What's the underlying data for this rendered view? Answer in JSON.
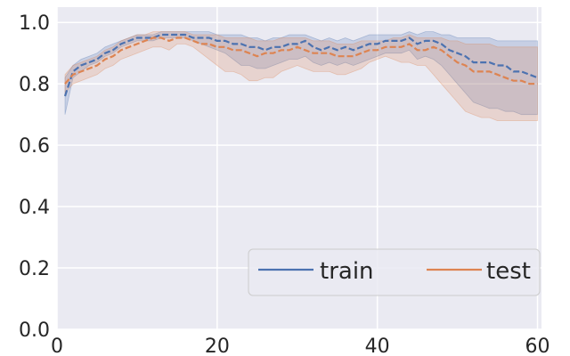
{
  "chart_data": {
    "type": "line",
    "xlim": [
      0,
      60.5
    ],
    "ylim": [
      0,
      1.05
    ],
    "xticks": [
      0,
      20,
      40,
      60
    ],
    "yticks": [
      0.0,
      0.2,
      0.4,
      0.6,
      0.8,
      1.0
    ],
    "xtick_labels": [
      "0",
      "20",
      "40",
      "60"
    ],
    "ytick_labels": [
      "0.0",
      "0.2",
      "0.4",
      "0.6",
      "0.8",
      "1.0"
    ],
    "grid": true,
    "legend": {
      "placement": "lower-right",
      "columns": 2
    },
    "series": [
      {
        "name": "train",
        "color": "#4c72b0",
        "style": "dashed",
        "x": [
          1,
          2,
          3,
          4,
          5,
          6,
          7,
          8,
          9,
          10,
          11,
          12,
          13,
          14,
          15,
          16,
          17,
          18,
          19,
          20,
          21,
          22,
          23,
          24,
          25,
          26,
          27,
          28,
          29,
          30,
          31,
          32,
          33,
          34,
          35,
          36,
          37,
          38,
          39,
          40,
          41,
          42,
          43,
          44,
          45,
          46,
          47,
          48,
          49,
          50,
          51,
          52,
          53,
          54,
          55,
          56,
          57,
          58,
          59,
          60
        ],
        "values": [
          0.76,
          0.84,
          0.86,
          0.87,
          0.88,
          0.9,
          0.91,
          0.93,
          0.94,
          0.95,
          0.95,
          0.95,
          0.96,
          0.96,
          0.96,
          0.96,
          0.95,
          0.95,
          0.95,
          0.94,
          0.94,
          0.93,
          0.93,
          0.92,
          0.92,
          0.91,
          0.92,
          0.92,
          0.93,
          0.93,
          0.94,
          0.92,
          0.91,
          0.92,
          0.91,
          0.92,
          0.91,
          0.92,
          0.93,
          0.93,
          0.94,
          0.94,
          0.94,
          0.95,
          0.93,
          0.94,
          0.94,
          0.93,
          0.91,
          0.9,
          0.89,
          0.87,
          0.87,
          0.87,
          0.86,
          0.86,
          0.84,
          0.84,
          0.83,
          0.82
        ],
        "lower": [
          0.7,
          0.82,
          0.84,
          0.86,
          0.87,
          0.89,
          0.9,
          0.92,
          0.93,
          0.94,
          0.94,
          0.94,
          0.95,
          0.95,
          0.95,
          0.95,
          0.94,
          0.93,
          0.92,
          0.91,
          0.9,
          0.88,
          0.86,
          0.86,
          0.85,
          0.85,
          0.86,
          0.87,
          0.88,
          0.88,
          0.89,
          0.87,
          0.86,
          0.87,
          0.86,
          0.87,
          0.86,
          0.87,
          0.88,
          0.89,
          0.9,
          0.9,
          0.9,
          0.91,
          0.88,
          0.89,
          0.88,
          0.86,
          0.83,
          0.8,
          0.77,
          0.74,
          0.73,
          0.72,
          0.72,
          0.71,
          0.71,
          0.7,
          0.7,
          0.7
        ],
        "upper": [
          0.82,
          0.86,
          0.88,
          0.89,
          0.9,
          0.92,
          0.93,
          0.94,
          0.95,
          0.96,
          0.96,
          0.96,
          0.97,
          0.97,
          0.97,
          0.97,
          0.97,
          0.97,
          0.97,
          0.96,
          0.96,
          0.96,
          0.96,
          0.95,
          0.95,
          0.94,
          0.95,
          0.95,
          0.96,
          0.96,
          0.96,
          0.95,
          0.94,
          0.95,
          0.94,
          0.95,
          0.94,
          0.95,
          0.96,
          0.96,
          0.96,
          0.96,
          0.96,
          0.97,
          0.96,
          0.97,
          0.97,
          0.96,
          0.96,
          0.95,
          0.95,
          0.95,
          0.95,
          0.95,
          0.94,
          0.94,
          0.94,
          0.94,
          0.94,
          0.94
        ]
      },
      {
        "name": "test",
        "color": "#dd8452",
        "style": "dashed",
        "x": [
          1,
          2,
          3,
          4,
          5,
          6,
          7,
          8,
          9,
          10,
          11,
          12,
          13,
          14,
          15,
          16,
          17,
          18,
          19,
          20,
          21,
          22,
          23,
          24,
          25,
          26,
          27,
          28,
          29,
          30,
          31,
          32,
          33,
          34,
          35,
          36,
          37,
          38,
          39,
          40,
          41,
          42,
          43,
          44,
          45,
          46,
          47,
          48,
          49,
          50,
          51,
          52,
          53,
          54,
          55,
          56,
          57,
          58,
          59,
          60
        ],
        "values": [
          0.8,
          0.83,
          0.84,
          0.85,
          0.86,
          0.88,
          0.89,
          0.91,
          0.92,
          0.93,
          0.94,
          0.95,
          0.95,
          0.94,
          0.95,
          0.95,
          0.94,
          0.93,
          0.93,
          0.92,
          0.92,
          0.91,
          0.91,
          0.9,
          0.89,
          0.9,
          0.9,
          0.91,
          0.91,
          0.92,
          0.91,
          0.9,
          0.9,
          0.9,
          0.89,
          0.89,
          0.89,
          0.9,
          0.91,
          0.91,
          0.92,
          0.92,
          0.92,
          0.93,
          0.91,
          0.91,
          0.92,
          0.91,
          0.89,
          0.87,
          0.86,
          0.84,
          0.84,
          0.84,
          0.83,
          0.82,
          0.81,
          0.81,
          0.8,
          0.8
        ],
        "lower": [
          0.77,
          0.8,
          0.81,
          0.82,
          0.83,
          0.85,
          0.86,
          0.88,
          0.89,
          0.9,
          0.91,
          0.92,
          0.92,
          0.91,
          0.93,
          0.93,
          0.92,
          0.9,
          0.88,
          0.86,
          0.84,
          0.84,
          0.83,
          0.81,
          0.81,
          0.82,
          0.82,
          0.84,
          0.85,
          0.86,
          0.85,
          0.84,
          0.84,
          0.84,
          0.83,
          0.83,
          0.84,
          0.85,
          0.87,
          0.88,
          0.89,
          0.88,
          0.87,
          0.87,
          0.86,
          0.86,
          0.83,
          0.8,
          0.77,
          0.74,
          0.71,
          0.7,
          0.69,
          0.69,
          0.68,
          0.68,
          0.68,
          0.68,
          0.68,
          0.68
        ],
        "upper": [
          0.83,
          0.86,
          0.87,
          0.88,
          0.89,
          0.91,
          0.92,
          0.94,
          0.95,
          0.96,
          0.96,
          0.97,
          0.97,
          0.97,
          0.97,
          0.97,
          0.96,
          0.96,
          0.96,
          0.96,
          0.95,
          0.95,
          0.95,
          0.95,
          0.94,
          0.94,
          0.94,
          0.95,
          0.95,
          0.95,
          0.95,
          0.94,
          0.94,
          0.94,
          0.93,
          0.93,
          0.93,
          0.94,
          0.94,
          0.94,
          0.94,
          0.95,
          0.95,
          0.96,
          0.95,
          0.95,
          0.95,
          0.95,
          0.94,
          0.94,
          0.93,
          0.93,
          0.93,
          0.93,
          0.92,
          0.92,
          0.92,
          0.92,
          0.92,
          0.92
        ]
      }
    ]
  }
}
